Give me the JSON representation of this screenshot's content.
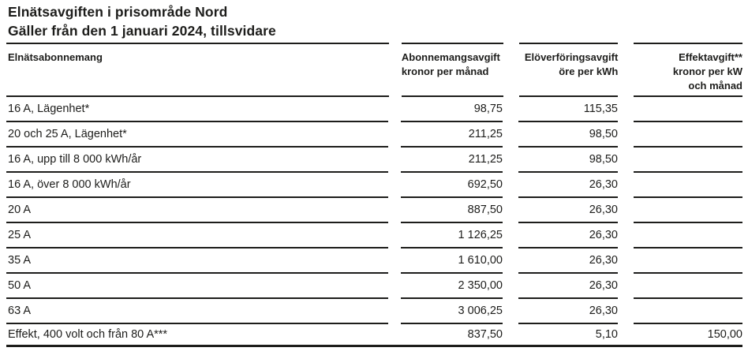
{
  "title": "Elnätsavgiften i prisområde Nord",
  "subtitle": "Gäller från den 1 januari 2024, tillsvidare",
  "colors": {
    "text": "#1d1d1b",
    "rule": "#1d1d1b",
    "background": "#ffffff"
  },
  "table": {
    "headers": [
      {
        "lines": [
          "Elnätsabonnemang"
        ],
        "align": "left"
      },
      {
        "lines": [
          "Abonnemangsavgift",
          "kronor per månad"
        ],
        "align": "left"
      },
      {
        "lines": [
          "Elöverföringsavgift",
          "öre per kWh"
        ],
        "align": "right"
      },
      {
        "lines": [
          "Effektavgift**",
          "kronor per kW",
          "och månad"
        ],
        "align": "right"
      }
    ],
    "rows": [
      {
        "label": "16 A, Lägenhet*",
        "values": [
          "98,75",
          "115,35",
          ""
        ]
      },
      {
        "label": "20 och 25 A, Lägenhet*",
        "values": [
          "211,25",
          "98,50",
          ""
        ]
      },
      {
        "label": "16 A, upp till 8 000 kWh/år",
        "values": [
          "211,25",
          "98,50",
          ""
        ]
      },
      {
        "label": "16 A, över 8 000 kWh/år",
        "values": [
          "692,50",
          "26,30",
          ""
        ]
      },
      {
        "label": "20 A",
        "values": [
          "887,50",
          "26,30",
          ""
        ]
      },
      {
        "label": "25 A",
        "values": [
          "1 126,25",
          "26,30",
          ""
        ]
      },
      {
        "label": "35 A",
        "values": [
          "1 610,00",
          "26,30",
          ""
        ]
      },
      {
        "label": "50 A",
        "values": [
          "2 350,00",
          "26,30",
          ""
        ]
      },
      {
        "label": "63 A",
        "values": [
          "3 006,25",
          "26,30",
          ""
        ]
      },
      {
        "label": "Effekt, 400 volt och från 80 A***",
        "values": [
          "837,50",
          "5,10",
          "150,00"
        ]
      }
    ]
  }
}
